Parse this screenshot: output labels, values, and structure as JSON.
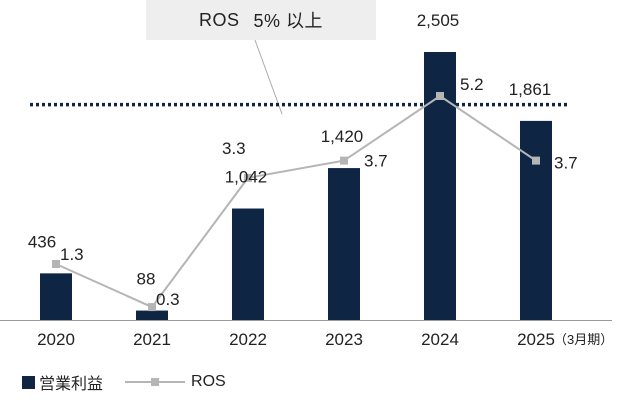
{
  "callout": {
    "label": "ROS",
    "value": "5% 以上"
  },
  "legend": {
    "bar_label": "営業利益",
    "line_label": "ROS"
  },
  "colors": {
    "bar": "#0e2544",
    "line": "#b5b5b5",
    "threshold": "#0e2544",
    "axis": "#999999"
  },
  "chart_data": {
    "type": "bar+line",
    "categories": [
      "2020",
      "2021",
      "2022",
      "2023",
      "2024",
      "2025"
    ],
    "category_suffix": [
      "",
      "",
      "",
      "",
      "",
      "（3月期）"
    ],
    "series": [
      {
        "name": "営業利益",
        "type": "bar",
        "values": [
          436,
          88,
          1042,
          1420,
          2505,
          1861
        ],
        "labels": [
          "436",
          "88",
          "1,042",
          "1,420",
          "2,505",
          "1,861"
        ]
      },
      {
        "name": "ROS",
        "type": "line",
        "values": [
          1.3,
          0.3,
          3.3,
          3.7,
          5.2,
          3.7
        ],
        "labels": [
          "1.3",
          "0.3",
          "3.3",
          "3.7",
          "5.2",
          "3.7"
        ]
      }
    ],
    "threshold": {
      "series": "ROS",
      "value": 5.0
    },
    "bar_ylim": [
      0,
      2600
    ],
    "line_ylim": [
      0,
      6.1
    ],
    "grid": false,
    "legend_position": "bottom-left"
  }
}
